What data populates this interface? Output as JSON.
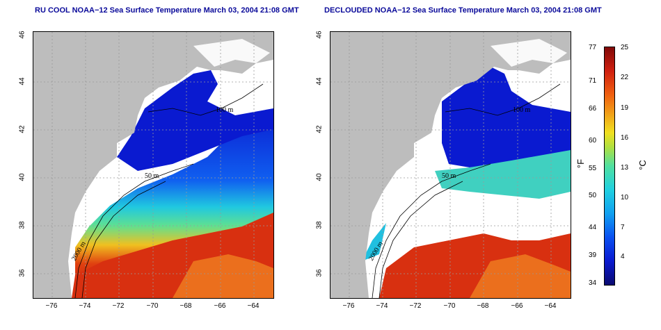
{
  "titles": {
    "left": "RU COOL NOAA−12 Sea Surface Temperature March 03, 2004 21:08 GMT",
    "right": "DECLOUDED NOAA−12 Sea Surface Temperature March 03, 2004 21:08 GMT"
  },
  "axes": {
    "y_ticks": [
      "46",
      "44",
      "42",
      "40",
      "38",
      "36"
    ],
    "x_ticks": [
      "−76",
      "−74",
      "−72",
      "−70",
      "−68",
      "−66",
      "−64"
    ]
  },
  "contour_labels": {
    "left": [
      "100 m",
      "50 m",
      "2000 m"
    ],
    "right": [
      "100 m",
      "50 m",
      "2000 m"
    ]
  },
  "colorbar": {
    "fahrenheit_labels": [
      "77",
      "71",
      "66",
      "60",
      "55",
      "50",
      "44",
      "39",
      "34"
    ],
    "celsius_labels": [
      "25",
      "22",
      "19",
      "16",
      "13",
      "10",
      "7",
      "4"
    ],
    "unit_f": "°F",
    "unit_c": "°C"
  },
  "colors": {
    "land": "#bdbdbd",
    "cold": "#0a1ad0",
    "cool": "#20c8e0",
    "warm": "#f0a018",
    "hot": "#d02010",
    "title": "#0a0a9a"
  }
}
